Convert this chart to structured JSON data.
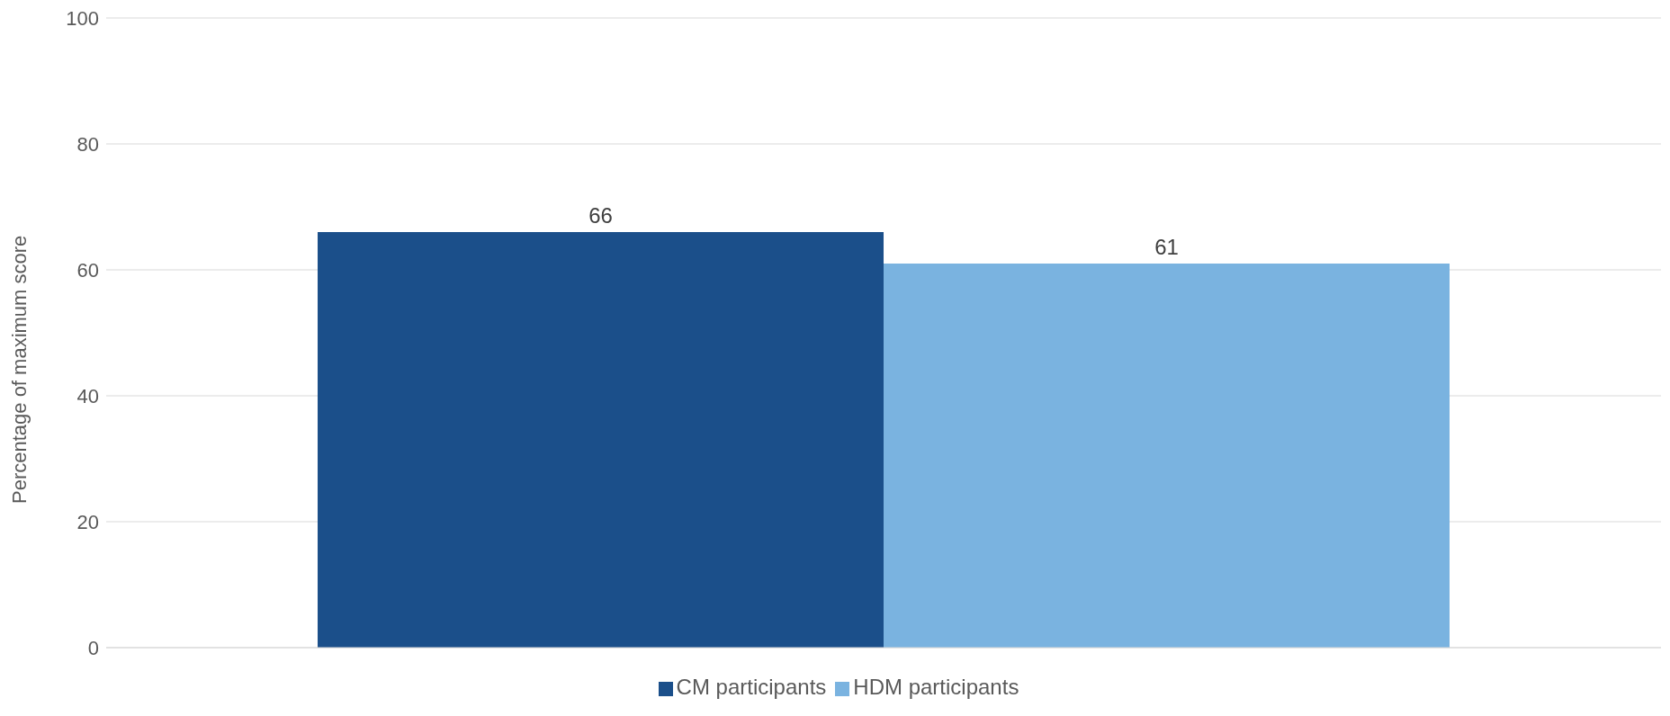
{
  "chart_data": {
    "type": "bar",
    "ylabel": "Percentage of maximum score",
    "categories": [
      null
    ],
    "series": [
      {
        "name": "CM participants",
        "color": "#1b4f8a",
        "values": [
          66
        ]
      },
      {
        "name": "HDM participants",
        "color": "#7ab3e0",
        "values": [
          61
        ]
      }
    ],
    "ylim": [
      0,
      100
    ],
    "yticks": [
      0,
      20,
      40,
      60,
      80,
      100
    ],
    "grid": "y",
    "legend": "bottom",
    "data_labels": true
  }
}
